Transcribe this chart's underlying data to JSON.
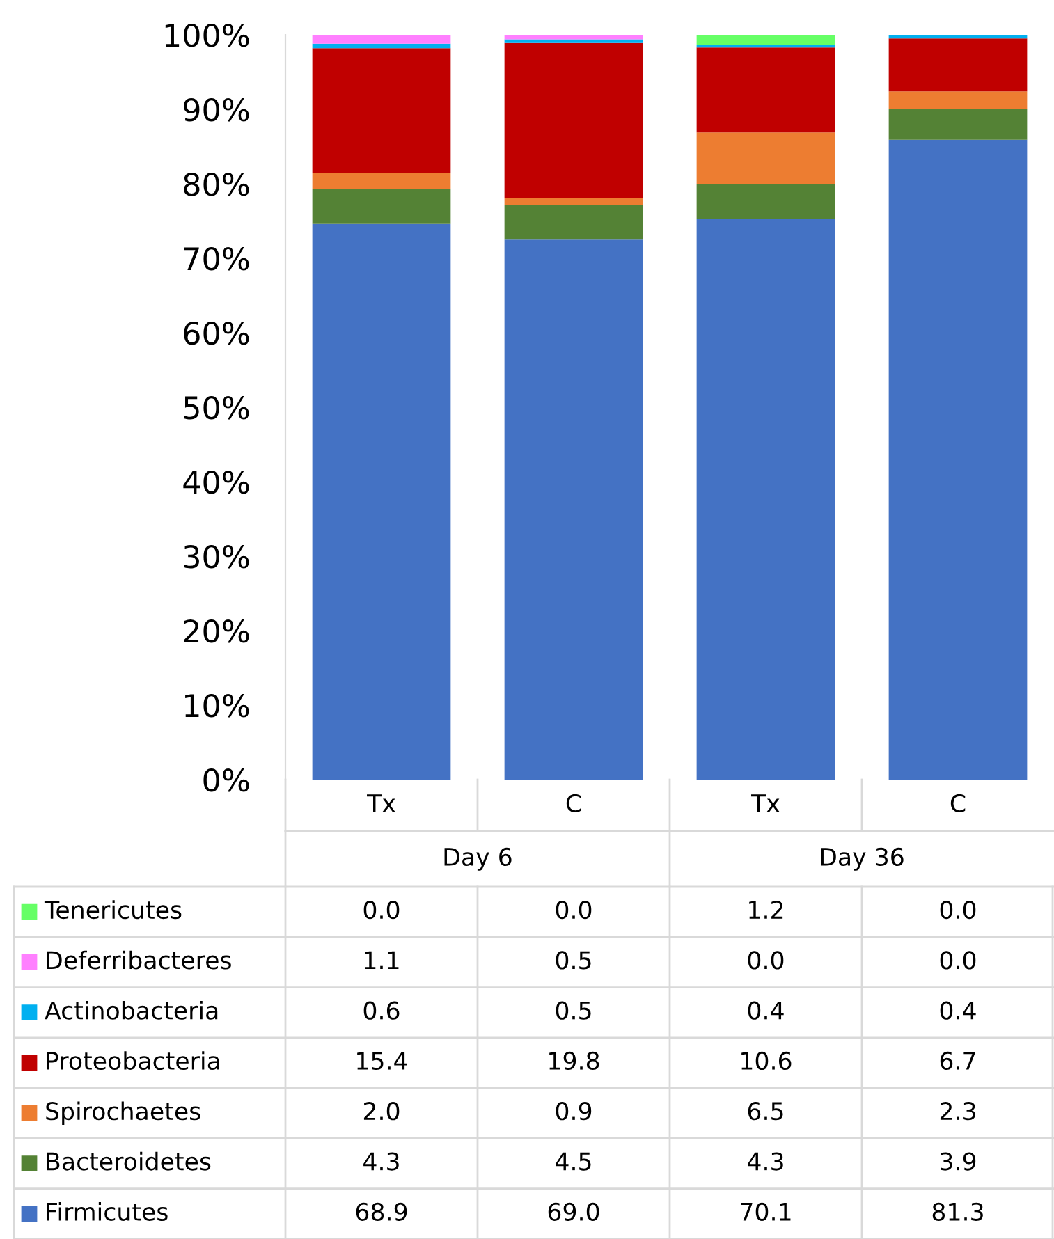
{
  "chart_data": {
    "type": "bar",
    "stacked": true,
    "categories": [
      "Tx",
      "C",
      "Tx",
      "C"
    ],
    "annotations": [
      "Day 6",
      "Day 36",
      "0.0",
      "0.0",
      "1.2",
      "0.0",
      "1.1",
      "0.5",
      "0.0",
      "0.0",
      "0.6",
      "0.5",
      "0.4",
      "0.4",
      "15.4",
      "19.8",
      "10.6",
      "6.7",
      "2.0",
      "0.9",
      "6.5",
      "2.3",
      "4.3",
      "4.5",
      "4.3",
      "3.9",
      "68.9",
      "69.0",
      "70.1",
      "81.3"
    ],
    "ylim": [
      0,
      100
    ],
    "yticks": [
      {
        "value": 0,
        "label": "0%"
      },
      {
        "value": 10,
        "label": "10%"
      },
      {
        "value": 20,
        "label": "20%"
      },
      {
        "value": 30,
        "label": "30%"
      },
      {
        "value": 40,
        "label": "40%"
      },
      {
        "value": 50,
        "label": "50%"
      },
      {
        "value": 60,
        "label": "60%"
      },
      {
        "value": 70,
        "label": "70%"
      },
      {
        "value": 80,
        "label": "80%"
      },
      {
        "value": 90,
        "label": "90%"
      },
      {
        "value": 100,
        "label": "100%"
      }
    ],
    "grid": false,
    "legend": "bottom",
    "series": [
      {
        "name": "Firmicutes",
        "color": "#4472c4",
        "values": [
          74.6,
          72.5,
          75.3,
          85.9
        ]
      },
      {
        "name": "Bacteroidetes",
        "color": "#548235",
        "values": [
          4.7,
          4.7,
          4.6,
          4.1
        ]
      },
      {
        "name": "Spirochaetes",
        "color": "#ed7d31",
        "values": [
          2.2,
          0.9,
          7.0,
          2.4
        ]
      },
      {
        "name": "Proteobacteria",
        "color": "#c00000",
        "values": [
          16.7,
          20.8,
          11.4,
          7.1
        ]
      },
      {
        "name": "Actinobacteria",
        "color": "#00b0f0",
        "values": [
          0.6,
          0.5,
          0.4,
          0.4
        ]
      },
      {
        "name": "Deferribacteres",
        "color": "#ff80ff",
        "values": [
          1.2,
          0.5,
          0.0,
          0.0
        ]
      },
      {
        "name": "Tenericutes",
        "color": "#66ff66",
        "values": [
          0.0,
          0.0,
          1.3,
          0.0
        ]
      }
    ]
  }
}
